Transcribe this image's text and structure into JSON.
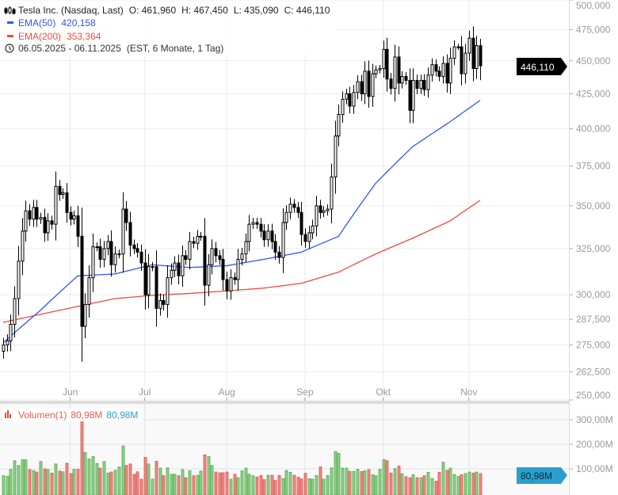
{
  "legend": {
    "instrument": "Tesla Inc. (Nasdaq, Last)",
    "open": "O: 461,960",
    "high": "H: 467,450",
    "low": "L: 435,090",
    "close": "C: 446,110",
    "ema50_label": "EMA(50)",
    "ema50_value": "420,158",
    "ema200_label": "EMA(200)",
    "ema200_value": "353,364",
    "range": "06.05.2025 - 06.11.2025",
    "range_note": "(EST, 6 Monate, 1 Tag)"
  },
  "volume_legend": {
    "label": "Volumen(1)",
    "value_red": "80,98M",
    "value_blue": "80,98M"
  },
  "badges": {
    "price": "446,110",
    "volume": "80,98M"
  },
  "colors": {
    "ema50": "#2f55ff",
    "ema200": "#f04a3a",
    "vol_up": "#8fd18a",
    "vol_down": "#f08a84",
    "volume_badge": "#2a9fcb",
    "price_badge": "#000000"
  },
  "chart_data": {
    "type": "candlestick",
    "price_axis": {
      "scale": "log",
      "range": [
        250,
        500
      ],
      "ticks": [
        "500,000",
        "475,000",
        "450,000",
        "425,000",
        "400,000",
        "375,000",
        "350,000",
        "325,000",
        "300,000",
        "287,500",
        "275,000",
        "262,500",
        "250,000"
      ],
      "tick_values": [
        500,
        475,
        450,
        425,
        400,
        375,
        350,
        325,
        300,
        287.5,
        275,
        262.5,
        250
      ]
    },
    "x_axis": {
      "ticks": [
        "Jun",
        "Jul",
        "Aug",
        "Sep",
        "Okt",
        "Nov"
      ],
      "tick_day_index": [
        18,
        38,
        60,
        81,
        102,
        125
      ]
    },
    "volume_axis": {
      "ticks": [
        "300,00M",
        "200,00M",
        "100,00M"
      ],
      "tick_values": [
        300,
        200,
        100
      ]
    },
    "grid": true,
    "first_open": 272,
    "close": [
      275,
      277,
      285,
      298,
      318,
      335,
      347,
      342,
      349,
      342,
      343,
      334,
      341,
      339,
      362,
      357,
      358,
      346,
      342,
      344,
      332,
      284,
      295,
      309,
      326,
      326,
      319,
      325,
      329,
      316,
      322,
      322,
      348,
      340,
      327,
      325,
      323,
      317,
      300,
      315,
      315,
      293,
      297,
      295,
      309,
      313,
      317,
      310,
      321,
      319,
      329,
      328,
      332,
      332,
      305,
      316,
      325,
      321,
      319,
      308,
      302,
      309,
      308,
      319,
      322,
      329,
      339,
      340,
      339,
      335,
      330,
      335,
      329,
      323,
      320,
      340,
      346,
      351,
      349,
      346,
      333,
      329,
      334,
      338,
      350,
      346,
      347,
      348,
      368,
      395,
      410,
      421,
      425,
      416,
      426,
      434,
      425,
      442,
      423,
      440,
      443,
      444,
      459,
      436,
      429,
      453,
      433,
      438,
      435,
      413,
      435,
      429,
      435,
      428,
      439,
      447,
      442,
      438,
      448,
      433,
      452,
      461,
      461,
      440,
      456,
      468,
      444,
      462,
      446.11
    ],
    "last_ohlc": {
      "open": 461.96,
      "high": 467.45,
      "low": 435.09,
      "close": 446.11
    },
    "volume_millions": [
      72,
      70,
      98,
      133,
      114,
      137,
      137,
      97,
      93,
      87,
      130,
      100,
      97,
      83,
      120,
      91,
      88,
      123,
      81,
      98,
      98,
      298,
      167,
      140,
      150,
      122,
      103,
      130,
      83,
      87,
      94,
      108,
      193,
      114,
      120,
      78,
      88,
      58,
      147,
      120,
      58,
      131,
      103,
      72,
      104,
      78,
      78,
      72,
      97,
      64,
      93,
      72,
      74,
      91,
      157,
      150,
      114,
      87,
      84,
      84,
      87,
      58,
      78,
      64,
      92,
      103,
      78,
      72,
      67,
      73,
      56,
      74,
      74,
      53,
      73,
      61,
      93,
      86,
      74,
      66,
      59,
      82,
      60,
      58,
      73,
      108,
      58,
      73,
      104,
      171,
      163,
      103,
      103,
      90,
      90,
      98,
      89,
      92,
      97,
      76,
      72,
      98,
      138,
      133,
      83,
      101,
      111,
      80,
      68,
      64,
      76,
      64,
      64,
      72,
      86,
      61,
      50,
      86,
      127,
      94,
      103,
      77,
      69,
      76,
      81,
      87,
      83,
      87,
      80.98
    ],
    "ema50": {
      "day_index": [
        0,
        10,
        20,
        30,
        40,
        50,
        60,
        70,
        80,
        90,
        100,
        110,
        120,
        128
      ],
      "values": [
        276,
        292,
        310,
        311,
        316,
        314.5,
        315.5,
        319,
        323,
        332,
        364,
        388,
        405,
        420.158
      ]
    },
    "ema200": {
      "day_index": [
        0,
        10,
        20,
        30,
        40,
        50,
        60,
        70,
        80,
        90,
        100,
        110,
        120,
        128
      ],
      "values": [
        286,
        290,
        294,
        298,
        299.7,
        300.7,
        302,
        303.5,
        306,
        312,
        322,
        331,
        341,
        353.364
      ]
    }
  }
}
